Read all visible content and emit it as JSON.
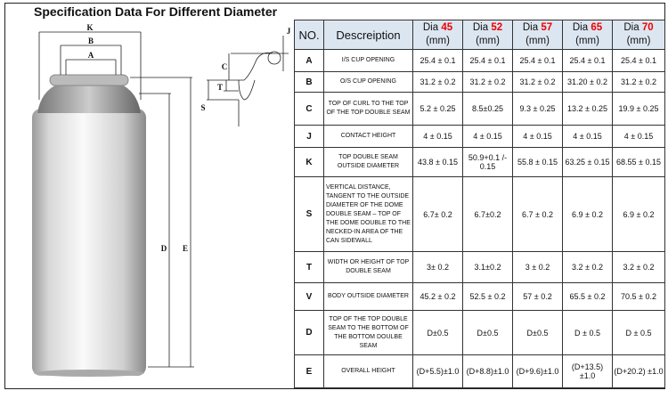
{
  "title": "Specification Data For Different Diameter",
  "drawing": {
    "labels": [
      "K",
      "B",
      "A",
      "C",
      "T",
      "S",
      "J",
      "D",
      "E"
    ]
  },
  "table": {
    "headers": {
      "no": "NO.",
      "description": "Descreiption",
      "dia_prefix": "Dia",
      "unit": "(mm)",
      "diameters": [
        "45",
        "52",
        "57",
        "65",
        "70"
      ]
    },
    "accent_color": "#ee0000",
    "header_bg": "#dce6f1",
    "rows": [
      {
        "no": "A",
        "desc": "I/S CUP OPENING",
        "values": [
          "25.4 ± 0.1",
          "25.4 ± 0.1",
          "25.4 ± 0.1",
          "25.4 ± 0.1",
          "25.4 ± 0.1"
        ]
      },
      {
        "no": "B",
        "desc": "O/S CUP OPENING",
        "values": [
          "31.2 ± 0.2",
          "31.2 ± 0.2",
          "31.2 ± 0.2",
          "31.20 ± 0.2",
          "31.2 ± 0.2"
        ]
      },
      {
        "no": "C",
        "desc": "TOP OF CURL TO THE TOP OF THE TOP DOUBLE SEAM",
        "values": [
          "5.2 ± 0.25",
          "8.5±0.25",
          "9.3 ± 0.25",
          "13.2 ± 0.25",
          "19.9 ± 0.25"
        ]
      },
      {
        "no": "J",
        "desc": "CONTACT HEIGHT",
        "values": [
          "4 ± 0.15",
          "4 ± 0.15",
          "4 ± 0.15",
          "4 ± 0.15",
          "4 ± 0.15"
        ]
      },
      {
        "no": "K",
        "desc": "TOP DOUBLE SEAM OUTSIDE DIAMETER",
        "values": [
          "43.8 ± 0.15",
          "50.9+0.1 /- 0.15",
          "55.8 ± 0.15",
          "63.25 ± 0.15",
          "68.55 ± 0.15"
        ]
      },
      {
        "no": "S",
        "desc": "VERTICAL DISTANCE, TANGENT TO THE OUTSIDE DIAMETER OF THE DOME DOUBLE SEAM – TOP OF THE DOME DOUBLE TO THE NECKED-IN AREA OF THE CAN SIDEWALL",
        "values": [
          "6.7± 0.2",
          "6.7±0.2",
          "6.7 ± 0.2",
          "6.9 ± 0.2",
          "6.9 ± 0.2"
        ]
      },
      {
        "no": "T",
        "desc": "WIDTH OR HEIGHT OF TOP DOUBLE SEAM",
        "values": [
          "3± 0.2",
          "3.1±0.2",
          "3 ± 0.2",
          "3.2 ± 0.2",
          "3.2 ± 0.2"
        ]
      },
      {
        "no": "V",
        "desc": "BODY OUTSIDE DIAMETER",
        "values": [
          "45.2 ± 0.2",
          "52.5 ± 0.2",
          "57 ± 0.2",
          "65.5 ± 0.2",
          "70.5 ± 0.2"
        ]
      },
      {
        "no": "D",
        "desc": "TOP OF THE TOP DOUBLE SEAM TO THE BOTTOM OF THE BOTTOM DOULBE SEAM",
        "values": [
          "D±0.5",
          "D±0.5",
          "D±0.5",
          "D ± 0.5",
          "D ± 0.5"
        ]
      },
      {
        "no": "E",
        "desc": "OVERALL HEIGHT",
        "values": [
          "(D+5.5)±1.0",
          "(D+8.8)±1.0",
          "(D+9.6)±1.0",
          "(D+13.5) ±1.0",
          "(D+20.2) ±1.0"
        ]
      }
    ]
  }
}
